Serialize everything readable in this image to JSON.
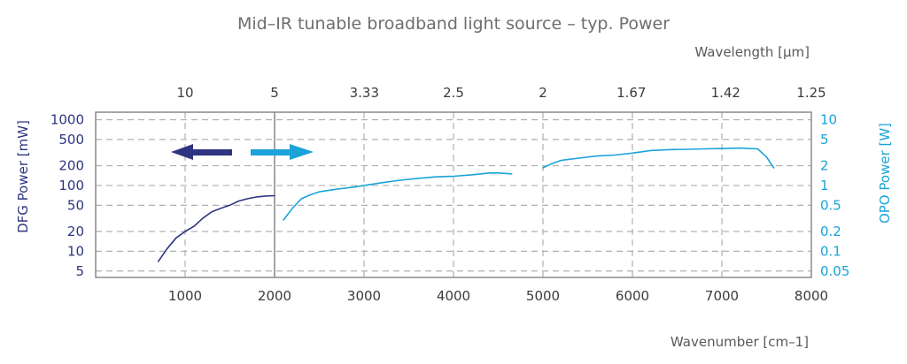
{
  "chart_data": {
    "type": "line",
    "title": "Mid–IR tunable broadband light source – typ. Power",
    "xlabel": "Wavenumber [cm–1]",
    "x2label": "Wavelength [µm]",
    "ylabel_left": "DFG Power [mW]",
    "ylabel_right": "OPO Power [W]",
    "x_ticks": [
      "1000",
      "2000",
      "3000",
      "4000",
      "5000",
      "6000",
      "7000",
      "8000"
    ],
    "x2_ticks": [
      "10",
      "5",
      "3.33",
      "2.5",
      "2",
      "1.67",
      "1.42",
      "1.25"
    ],
    "y_left_ticks": [
      "1000",
      "500",
      "200",
      "100",
      "50",
      "20",
      "10",
      "5"
    ],
    "y_right_ticks": [
      "10",
      "5",
      "2",
      "1",
      "0.5",
      "0.2",
      "0.1",
      "0.05"
    ],
    "xlim": [
      0,
      8000
    ],
    "ylim_left": [
      4,
      1300
    ],
    "ylim_right": [
      0.04,
      13
    ],
    "y_scale": "log",
    "grid": true,
    "colors": {
      "dfg": "#2e3580",
      "opo": "#1aa3d8",
      "axis": "#888888",
      "grid": "#b0b0b0"
    },
    "series": [
      {
        "axis": "left",
        "x": [
          700,
          800,
          900,
          1000,
          1100,
          1200,
          1300,
          1400,
          1500,
          1600,
          1700,
          1800,
          1900,
          2000
        ],
        "values": [
          7,
          11,
          16,
          20,
          24,
          32,
          40,
          45,
          50,
          58,
          63,
          67,
          69,
          70
        ]
      },
      {
        "axis": "right",
        "x": [
          2100,
          2200,
          2300,
          2400,
          2500,
          2700,
          2900,
          3000,
          3200,
          3400,
          3600,
          3800,
          4000,
          4200,
          4400,
          4500,
          4650
        ],
        "values": [
          0.3,
          0.45,
          0.63,
          0.72,
          0.8,
          0.88,
          0.95,
          1.0,
          1.1,
          1.2,
          1.28,
          1.35,
          1.38,
          1.45,
          1.55,
          1.55,
          1.5
        ]
      },
      {
        "axis": "right",
        "x": [
          5000,
          5100,
          5200,
          5400,
          5600,
          5800,
          6000,
          6200,
          6400,
          6600,
          6800,
          7000,
          7200,
          7400,
          7500,
          7580
        ],
        "values": [
          1.85,
          2.15,
          2.4,
          2.6,
          2.8,
          2.9,
          3.1,
          3.4,
          3.5,
          3.55,
          3.6,
          3.65,
          3.7,
          3.6,
          2.7,
          1.85
        ]
      }
    ]
  }
}
